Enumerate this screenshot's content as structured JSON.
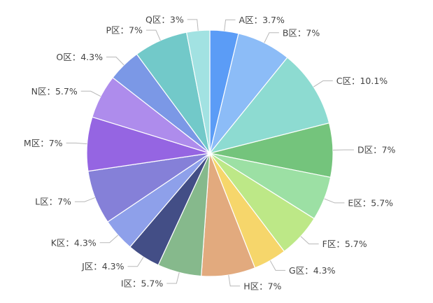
{
  "chart_data": {
    "type": "pie",
    "title": "",
    "slices": [
      {
        "label": "A区：3.7%",
        "value": 3.7,
        "color": "#5b9cf6"
      },
      {
        "label": "B区：7%",
        "value": 7,
        "color": "#8cbcf7"
      },
      {
        "label": "C区：10.1%",
        "value": 10.1,
        "color": "#8ddbd1"
      },
      {
        "label": "D区：7%",
        "value": 7,
        "color": "#74c47c"
      },
      {
        "label": "E区：5.7%",
        "value": 5.7,
        "color": "#9ce0a4"
      },
      {
        "label": "F区：5.7%",
        "value": 5.7,
        "color": "#bde887"
      },
      {
        "label": "G区：4.3%",
        "value": 4.3,
        "color": "#f6d66b"
      },
      {
        "label": "H区：7%",
        "value": 7,
        "color": "#e2aa7e"
      },
      {
        "label": "I区：5.7%",
        "value": 5.7,
        "color": "#86b98c"
      },
      {
        "label": "J区：4.3%",
        "value": 4.3,
        "color": "#434e86"
      },
      {
        "label": "K区：4.3%",
        "value": 4.3,
        "color": "#8ea0ea"
      },
      {
        "label": "L区：7%",
        "value": 7,
        "color": "#8580d8"
      },
      {
        "label": "M区：7%",
        "value": 7,
        "color": "#9565e2"
      },
      {
        "label": "N区：5.7%",
        "value": 5.7,
        "color": "#ae8cec"
      },
      {
        "label": "O区：4.3%",
        "value": 4.3,
        "color": "#7b98e6"
      },
      {
        "label": "P区：7%",
        "value": 7,
        "color": "#72c9c9"
      },
      {
        "label": "Q区：3%",
        "value": 3,
        "color": "#a2e2e2"
      }
    ]
  }
}
